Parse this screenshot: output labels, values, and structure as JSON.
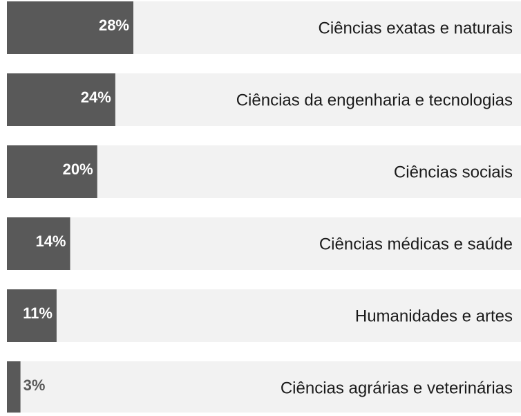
{
  "chart_data": {
    "type": "bar",
    "orientation": "horizontal",
    "categories": [
      "Ciências exatas e naturais",
      "Ciências da engenharia e tecnologias",
      "Ciências sociais",
      "Ciências médicas e saúde",
      "Humanidades e artes",
      "Ciências agrárias e veterinárias"
    ],
    "values": [
      28,
      24,
      20,
      14,
      11,
      3
    ],
    "value_labels": [
      "28%",
      "24%",
      "20%",
      "14%",
      "11%",
      "3%"
    ],
    "color": "#595959",
    "background_color": "#f2f2f2"
  }
}
